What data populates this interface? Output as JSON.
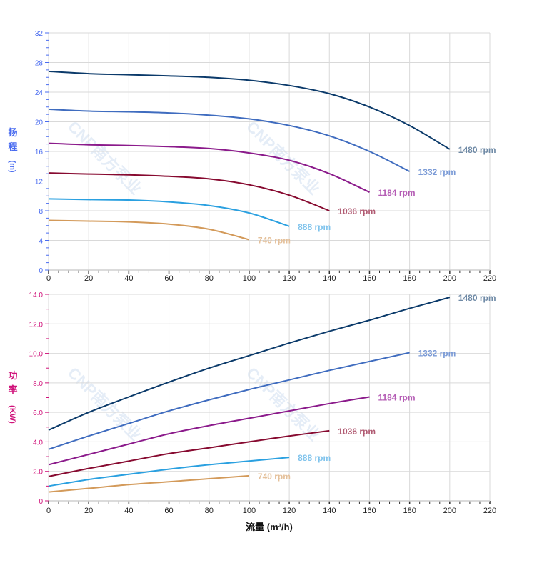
{
  "watermark": "CNP南方泵业",
  "colors": {
    "head_axis": "#4a6cf0",
    "power_axis": "#d0127a",
    "grid": "#d9d9d9"
  },
  "chart_data": [
    {
      "type": "line",
      "ylabel_lines": [
        "扬",
        "程",
        "(m)"
      ],
      "xlim": [
        0,
        220
      ],
      "ylim": [
        0,
        32
      ],
      "xticks": [
        "0",
        "20",
        "40",
        "60",
        "80",
        "100",
        "120",
        "140",
        "160",
        "180",
        "200",
        "220"
      ],
      "yticks": [
        "0",
        "4",
        "8",
        "12",
        "16",
        "20",
        "24",
        "28",
        "32"
      ],
      "grid": true,
      "series": [
        {
          "name": "1480 rpm",
          "color": "#0b3a6a",
          "label_color": "#6f8aa6",
          "x": [
            0,
            20,
            40,
            60,
            80,
            100,
            120,
            140,
            160,
            180,
            200
          ],
          "y": [
            26.8,
            26.5,
            26.35,
            26.2,
            26.0,
            25.6,
            24.9,
            23.8,
            22.0,
            19.5,
            16.3
          ]
        },
        {
          "name": "1332 rpm",
          "color": "#3f6cbf",
          "label_color": "#7a9ad6",
          "x": [
            0,
            20,
            40,
            60,
            80,
            100,
            120,
            140,
            160,
            180
          ],
          "y": [
            21.7,
            21.45,
            21.35,
            21.2,
            20.9,
            20.4,
            19.5,
            18.1,
            16.0,
            13.3
          ]
        },
        {
          "name": "1184 rpm",
          "color": "#8b1a8b",
          "label_color": "#b55db5",
          "x": [
            0,
            20,
            40,
            60,
            80,
            100,
            120,
            140,
            160
          ],
          "y": [
            17.1,
            16.9,
            16.8,
            16.65,
            16.4,
            15.8,
            14.8,
            13.0,
            10.5
          ]
        },
        {
          "name": "1036 rpm",
          "color": "#870a30",
          "label_color": "#b05a72",
          "x": [
            0,
            20,
            40,
            60,
            80,
            100,
            120,
            140
          ],
          "y": [
            13.1,
            12.95,
            12.85,
            12.65,
            12.3,
            11.5,
            10.1,
            8.0
          ]
        },
        {
          "name": "888 rpm",
          "color": "#2aa0e0",
          "label_color": "#7fc3ec",
          "x": [
            0,
            20,
            40,
            60,
            80,
            100,
            120
          ],
          "y": [
            9.6,
            9.5,
            9.45,
            9.2,
            8.7,
            7.7,
            5.9
          ]
        },
        {
          "name": "740 rpm",
          "color": "#d39a5a",
          "label_color": "#e4c09a",
          "x": [
            0,
            20,
            40,
            60,
            80,
            100
          ],
          "y": [
            6.7,
            6.6,
            6.5,
            6.2,
            5.5,
            4.1
          ]
        }
      ]
    },
    {
      "type": "line",
      "ylabel_lines": [
        "功",
        "率",
        "(KW)"
      ],
      "xlabel": "流量 (m³/h)",
      "xlim": [
        0,
        220
      ],
      "ylim": [
        0,
        14
      ],
      "xticks": [
        "0",
        "20",
        "40",
        "60",
        "80",
        "100",
        "120",
        "140",
        "160",
        "180",
        "200",
        "220"
      ],
      "yticks": [
        "0",
        "2.0",
        "4.0",
        "6.0",
        "8.0",
        "10.0",
        "12.0",
        "14.0"
      ],
      "grid": true,
      "series": [
        {
          "name": "1480 rpm",
          "color": "#0b3a6a",
          "label_color": "#6f8aa6",
          "x": [
            0,
            20,
            40,
            60,
            80,
            100,
            120,
            140,
            160,
            180,
            200
          ],
          "y": [
            4.8,
            6.0,
            7.05,
            8.05,
            9.0,
            9.85,
            10.7,
            11.5,
            12.25,
            13.05,
            13.8
          ]
        },
        {
          "name": "1332 rpm",
          "color": "#3f6cbf",
          "label_color": "#7a9ad6",
          "x": [
            0,
            20,
            40,
            60,
            80,
            100,
            120,
            140,
            160,
            180
          ],
          "y": [
            3.5,
            4.4,
            5.25,
            6.1,
            6.85,
            7.55,
            8.2,
            8.85,
            9.45,
            10.05
          ]
        },
        {
          "name": "1184 rpm",
          "color": "#8b1a8b",
          "label_color": "#b55db5",
          "x": [
            0,
            20,
            40,
            60,
            80,
            100,
            120,
            140,
            160
          ],
          "y": [
            2.45,
            3.15,
            3.85,
            4.55,
            5.1,
            5.6,
            6.1,
            6.6,
            7.05
          ]
        },
        {
          "name": "1036 rpm",
          "color": "#870a30",
          "label_color": "#b05a72",
          "x": [
            0,
            20,
            40,
            60,
            80,
            100,
            120,
            140
          ],
          "y": [
            1.65,
            2.2,
            2.7,
            3.2,
            3.6,
            4.0,
            4.4,
            4.75
          ]
        },
        {
          "name": "888 rpm",
          "color": "#2aa0e0",
          "label_color": "#7fc3ec",
          "x": [
            0,
            20,
            40,
            60,
            80,
            100,
            120
          ],
          "y": [
            1.0,
            1.45,
            1.8,
            2.15,
            2.45,
            2.7,
            2.95
          ]
        },
        {
          "name": "740 rpm",
          "color": "#d39a5a",
          "label_color": "#e4c09a",
          "x": [
            0,
            20,
            40,
            60,
            80,
            100
          ],
          "y": [
            0.6,
            0.85,
            1.1,
            1.3,
            1.5,
            1.7
          ]
        }
      ]
    }
  ]
}
